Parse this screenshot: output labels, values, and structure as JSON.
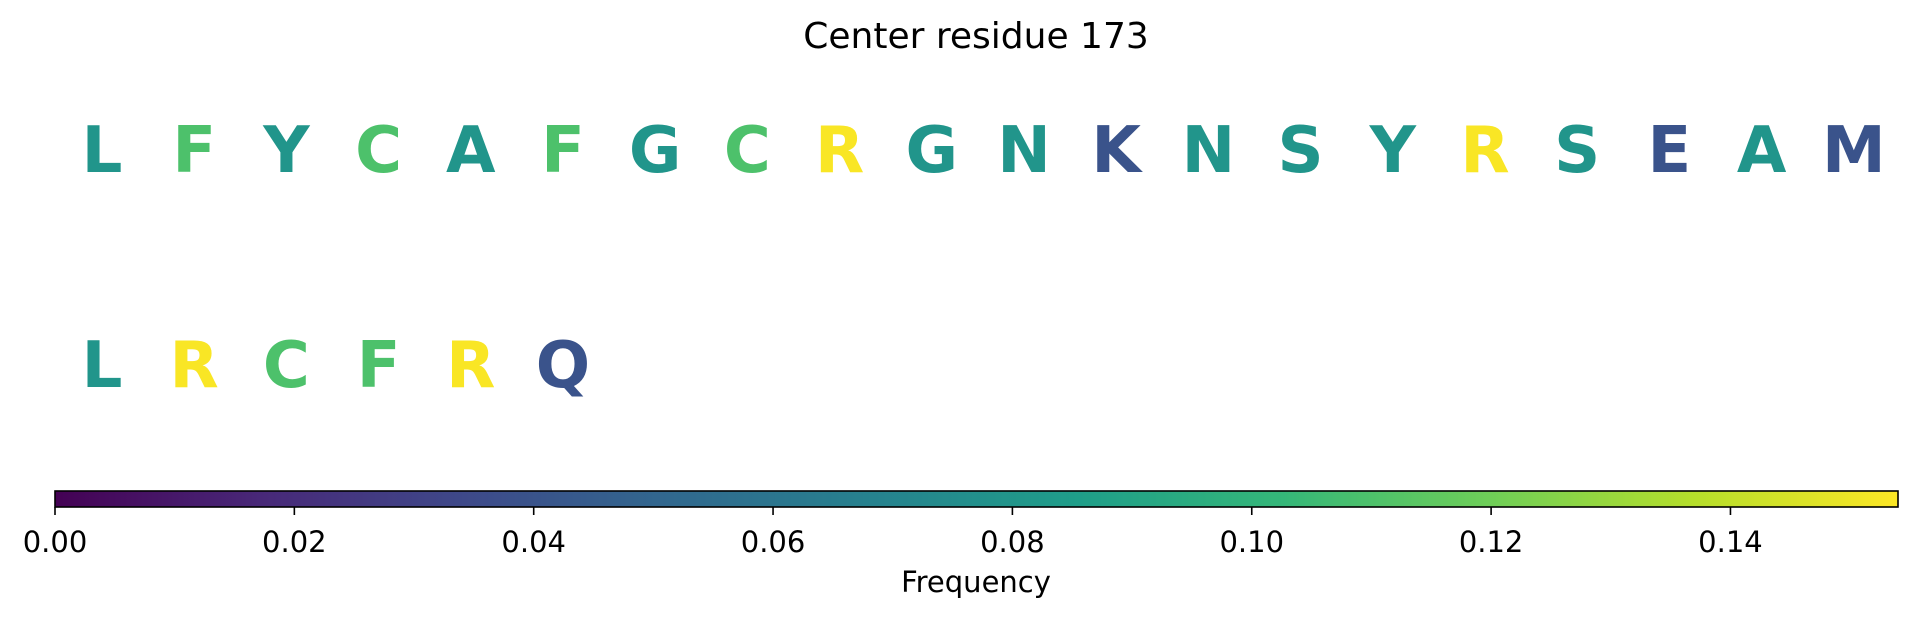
{
  "chart_data": {
    "type": "heatmap",
    "title": "Center residue 173",
    "residues": [
      {
        "letter": "L",
        "frequency": 0.08
      },
      {
        "letter": "F",
        "frequency": 0.11
      },
      {
        "letter": "Y",
        "frequency": 0.08
      },
      {
        "letter": "C",
        "frequency": 0.11
      },
      {
        "letter": "A",
        "frequency": 0.08
      },
      {
        "letter": "F",
        "frequency": 0.11
      },
      {
        "letter": "G",
        "frequency": 0.08
      },
      {
        "letter": "C",
        "frequency": 0.11
      },
      {
        "letter": "R",
        "frequency": 0.153
      },
      {
        "letter": "G",
        "frequency": 0.08
      },
      {
        "letter": "N",
        "frequency": 0.08
      },
      {
        "letter": "K",
        "frequency": 0.04
      },
      {
        "letter": "N",
        "frequency": 0.08
      },
      {
        "letter": "S",
        "frequency": 0.08
      },
      {
        "letter": "Y",
        "frequency": 0.08
      },
      {
        "letter": "R",
        "frequency": 0.153
      },
      {
        "letter": "S",
        "frequency": 0.08
      },
      {
        "letter": "E",
        "frequency": 0.04
      },
      {
        "letter": "A",
        "frequency": 0.08
      },
      {
        "letter": "M",
        "frequency": 0.04
      },
      {
        "letter": "L",
        "frequency": 0.08
      },
      {
        "letter": "R",
        "frequency": 0.153
      },
      {
        "letter": "C",
        "frequency": 0.11
      },
      {
        "letter": "F",
        "frequency": 0.11
      },
      {
        "letter": "R",
        "frequency": 0.153
      },
      {
        "letter": "Q",
        "frequency": 0.04
      }
    ],
    "colorbar": {
      "label": "Frequency",
      "colormap": "viridis",
      "range": [
        0,
        0.154
      ],
      "ticks": [
        {
          "value": 0.0,
          "label": "0.00"
        },
        {
          "value": 0.02,
          "label": "0.02"
        },
        {
          "value": 0.04,
          "label": "0.04"
        },
        {
          "value": 0.06,
          "label": "0.06"
        },
        {
          "value": 0.08,
          "label": "0.08"
        },
        {
          "value": 0.1,
          "label": "0.10"
        },
        {
          "value": 0.12,
          "label": "0.12"
        },
        {
          "value": 0.14,
          "label": "0.14"
        }
      ],
      "stops": [
        "#440154",
        "#482878",
        "#3e4989",
        "#31688e",
        "#26828e",
        "#1f9e89",
        "#35b779",
        "#6ece58",
        "#b5de2b",
        "#fde725"
      ]
    }
  }
}
